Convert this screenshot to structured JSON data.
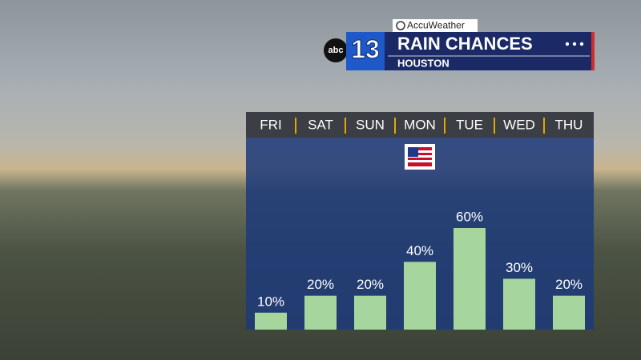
{
  "brand": {
    "network": "abc",
    "channel": "13",
    "weather": "AccuWeather"
  },
  "chart_data": {
    "type": "bar",
    "title": "RAIN CHANCES",
    "subtitle": "HOUSTON",
    "categories": [
      "FRI",
      "SAT",
      "SUN",
      "MON",
      "TUE",
      "WED",
      "THU"
    ],
    "values": [
      10,
      20,
      20,
      40,
      60,
      30,
      20
    ],
    "value_labels": [
      "10%",
      "20%",
      "20%",
      "40%",
      "60%",
      "30%",
      "20%"
    ],
    "color": "#a6d69d"
  }
}
